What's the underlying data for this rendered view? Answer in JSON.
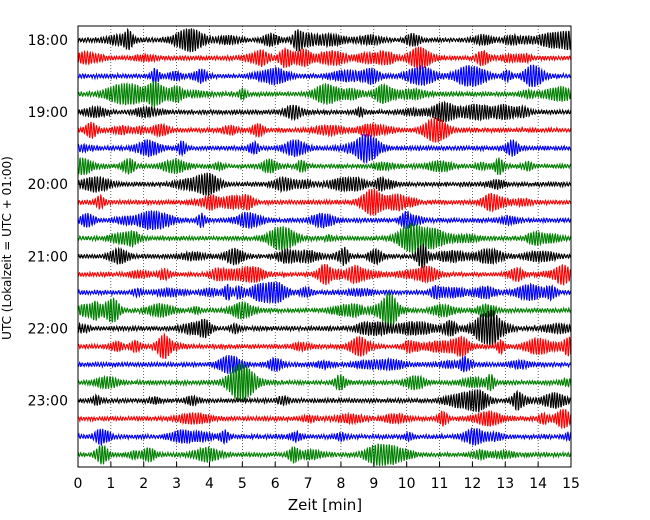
{
  "chart_data": {
    "type": "line",
    "title": "",
    "xlabel": "Zeit  [min]",
    "ylabel": "UTC (Lokalzeit = UTC + 01:00)",
    "xlim": [
      0,
      15
    ],
    "x_ticks": [
      "0",
      "1",
      "2",
      "3",
      "4",
      "5",
      "6",
      "7",
      "8",
      "9",
      "10",
      "11",
      "12",
      "13",
      "14",
      "15"
    ],
    "y_tick_labels": [
      "18:00",
      "19:00",
      "20:00",
      "21:00",
      "22:00",
      "23:00"
    ],
    "grid": "vertical dotted",
    "traces_per_hour": 4,
    "trace_interval_min": 15,
    "start_time": "18:00",
    "colors": [
      "#000000",
      "#ff0000",
      "#0000ff",
      "#008000"
    ],
    "traces": [
      {
        "start": "18:00",
        "color": "#000000"
      },
      {
        "start": "18:15",
        "color": "#ff0000"
      },
      {
        "start": "18:30",
        "color": "#0000ff"
      },
      {
        "start": "18:45",
        "color": "#008000"
      },
      {
        "start": "19:00",
        "color": "#000000"
      },
      {
        "start": "19:15",
        "color": "#ff0000"
      },
      {
        "start": "19:30",
        "color": "#0000ff"
      },
      {
        "start": "19:45",
        "color": "#008000"
      },
      {
        "start": "20:00",
        "color": "#000000"
      },
      {
        "start": "20:15",
        "color": "#ff0000"
      },
      {
        "start": "20:30",
        "color": "#0000ff"
      },
      {
        "start": "20:45",
        "color": "#008000"
      },
      {
        "start": "21:00",
        "color": "#000000"
      },
      {
        "start": "21:15",
        "color": "#ff0000"
      },
      {
        "start": "21:30",
        "color": "#0000ff"
      },
      {
        "start": "21:45",
        "color": "#008000"
      },
      {
        "start": "22:00",
        "color": "#000000"
      },
      {
        "start": "22:15",
        "color": "#ff0000"
      },
      {
        "start": "22:30",
        "color": "#0000ff"
      },
      {
        "start": "22:45",
        "color": "#008000"
      },
      {
        "start": "23:00",
        "color": "#000000"
      },
      {
        "start": "23:15",
        "color": "#ff0000"
      },
      {
        "start": "23:30",
        "color": "#0000ff"
      },
      {
        "start": "23:45",
        "color": "#008000"
      }
    ]
  }
}
